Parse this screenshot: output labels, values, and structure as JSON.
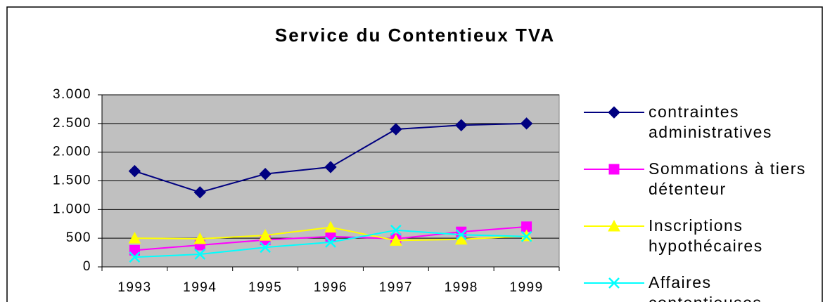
{
  "chart_data": {
    "type": "line",
    "title": "Service du Contentieux TVA",
    "categories": [
      "1993",
      "1994",
      "1995",
      "1996",
      "1997",
      "1998",
      "1999"
    ],
    "series": [
      {
        "name": "contraintes administratives",
        "color": "#000080",
        "marker": "diamond",
        "values": [
          1670,
          1300,
          1620,
          1740,
          2400,
          2470,
          2500
        ]
      },
      {
        "name": "Sommations à tiers détenteur",
        "color": "#ff00ff",
        "marker": "square",
        "values": [
          290,
          380,
          470,
          530,
          490,
          610,
          700
        ]
      },
      {
        "name": "Inscriptions hypothécaires",
        "color": "#ffff00",
        "marker": "triangle",
        "values": [
          500,
          490,
          550,
          690,
          460,
          480,
          540
        ]
      },
      {
        "name": "Affaires contentieuses",
        "color": "#00ffff",
        "marker": "x",
        "values": [
          170,
          220,
          340,
          430,
          640,
          560,
          530
        ]
      }
    ],
    "ylim": [
      0,
      3000
    ],
    "yticks": [
      0,
      500,
      {
        "value": 1000,
        "label": "1.000"
      },
      {
        "value": 1500,
        "label": "1.500"
      },
      {
        "value": 2000,
        "label": "2.000"
      },
      {
        "value": 2500,
        "label": "2.500"
      },
      {
        "value": 3000,
        "label": "3.000"
      }
    ],
    "grid": true,
    "legend": "right"
  }
}
